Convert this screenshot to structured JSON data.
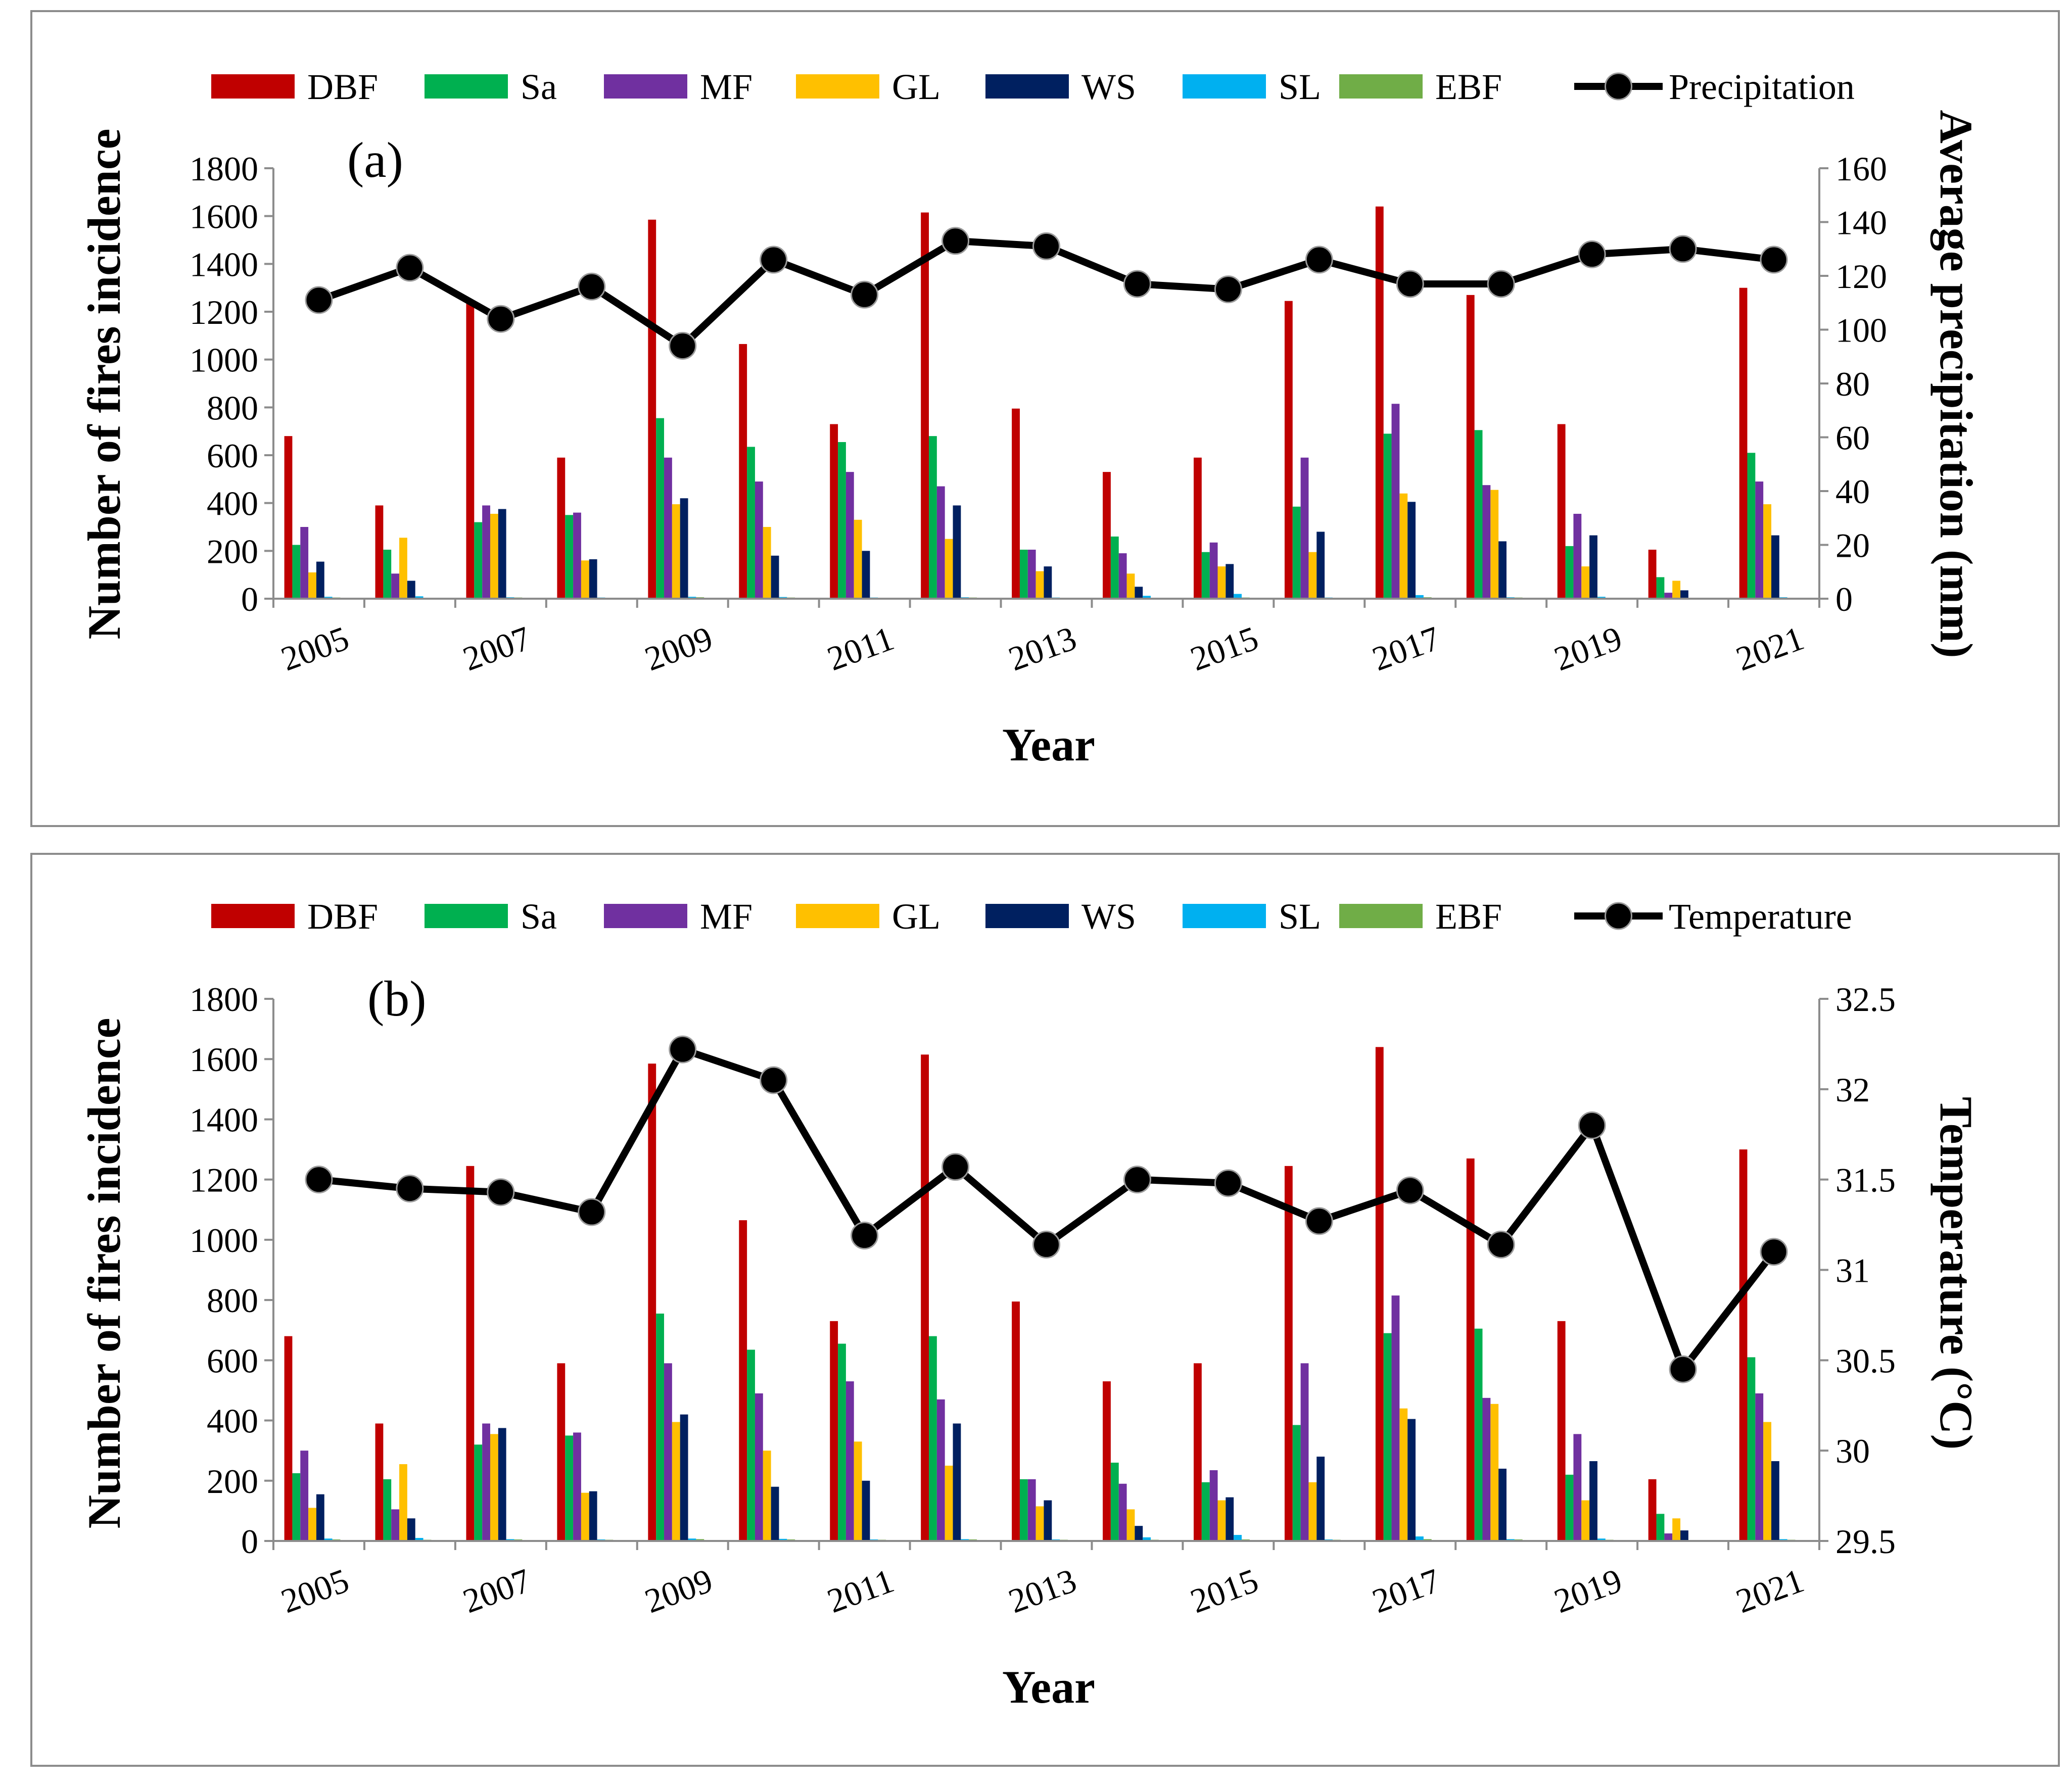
{
  "chart_data": [
    {
      "type": "bar",
      "panel_label": "(a)",
      "categories": [
        "2005",
        "2006",
        "2007",
        "2008",
        "2009",
        "2010",
        "2011",
        "2012",
        "2013",
        "2014",
        "2015",
        "2016",
        "2017",
        "2018",
        "2019",
        "2020",
        "2021"
      ],
      "x_tick_labels": [
        "2005",
        "2007",
        "2009",
        "2011",
        "2013",
        "2015",
        "2017",
        "2019",
        "2021"
      ],
      "series": [
        {
          "name": "DBF",
          "color": "#c00000",
          "values": [
            680,
            390,
            1245,
            590,
            1585,
            1065,
            730,
            1615,
            795,
            530,
            590,
            1245,
            1640,
            1270,
            730,
            205,
            1300
          ]
        },
        {
          "name": "Sa",
          "color": "#00b050",
          "values": [
            225,
            205,
            320,
            350,
            755,
            635,
            655,
            680,
            205,
            260,
            195,
            385,
            690,
            705,
            220,
            90,
            610
          ]
        },
        {
          "name": "MF",
          "color": "#7030a0",
          "values": [
            300,
            105,
            390,
            360,
            590,
            490,
            530,
            470,
            205,
            190,
            235,
            590,
            815,
            475,
            355,
            25,
            490
          ]
        },
        {
          "name": "GL",
          "color": "#ffc000",
          "values": [
            110,
            255,
            355,
            160,
            395,
            300,
            330,
            250,
            115,
            105,
            135,
            195,
            440,
            455,
            135,
            75,
            395
          ]
        },
        {
          "name": "WS",
          "color": "#002060",
          "values": [
            155,
            75,
            375,
            165,
            420,
            180,
            200,
            390,
            135,
            50,
            145,
            280,
            405,
            240,
            265,
            35,
            265
          ]
        },
        {
          "name": "SL",
          "color": "#00b0f0",
          "values": [
            8,
            10,
            6,
            5,
            8,
            7,
            5,
            6,
            5,
            12,
            20,
            5,
            15,
            6,
            8,
            3,
            6
          ]
        },
        {
          "name": "EBF",
          "color": "#70ad47",
          "values": [
            5,
            4,
            5,
            4,
            6,
            5,
            4,
            5,
            4,
            4,
            5,
            4,
            6,
            5,
            4,
            2,
            4
          ]
        }
      ],
      "line_series": {
        "name": "Precipitation",
        "values": [
          111,
          123,
          104,
          116,
          94,
          126,
          113,
          133,
          131,
          117,
          115,
          126,
          117,
          117,
          128,
          130,
          126
        ]
      },
      "ylabel": "Number of fires incidence",
      "y2label": "Average precipitation (mm)",
      "xlabel": "Year",
      "ylim": [
        0,
        1800
      ],
      "y_ticks": [
        "0",
        "200",
        "400",
        "600",
        "800",
        "1000",
        "1200",
        "1400",
        "1600",
        "1800"
      ],
      "y2lim": [
        0,
        160
      ],
      "y2_ticks": [
        "0",
        "20",
        "40",
        "60",
        "80",
        "100",
        "120",
        "140",
        "160"
      ]
    },
    {
      "type": "bar",
      "panel_label": "(b)",
      "categories": [
        "2005",
        "2006",
        "2007",
        "2008",
        "2009",
        "2010",
        "2011",
        "2012",
        "2013",
        "2014",
        "2015",
        "2016",
        "2017",
        "2018",
        "2019",
        "2020",
        "2021"
      ],
      "x_tick_labels": [
        "2005",
        "2007",
        "2009",
        "2011",
        "2013",
        "2015",
        "2017",
        "2019",
        "2021"
      ],
      "series": [
        {
          "name": "DBF",
          "color": "#c00000",
          "values": [
            680,
            390,
            1245,
            590,
            1585,
            1065,
            730,
            1615,
            795,
            530,
            590,
            1245,
            1640,
            1270,
            730,
            205,
            1300
          ]
        },
        {
          "name": "Sa",
          "color": "#00b050",
          "values": [
            225,
            205,
            320,
            350,
            755,
            635,
            655,
            680,
            205,
            260,
            195,
            385,
            690,
            705,
            220,
            90,
            610
          ]
        },
        {
          "name": "MF",
          "color": "#7030a0",
          "values": [
            300,
            105,
            390,
            360,
            590,
            490,
            530,
            470,
            205,
            190,
            235,
            590,
            815,
            475,
            355,
            25,
            490
          ]
        },
        {
          "name": "GL",
          "color": "#ffc000",
          "values": [
            110,
            255,
            355,
            160,
            395,
            300,
            330,
            250,
            115,
            105,
            135,
            195,
            440,
            455,
            135,
            75,
            395
          ]
        },
        {
          "name": "WS",
          "color": "#002060",
          "values": [
            155,
            75,
            375,
            165,
            420,
            180,
            200,
            390,
            135,
            50,
            145,
            280,
            405,
            240,
            265,
            35,
            265
          ]
        },
        {
          "name": "SL",
          "color": "#00b0f0",
          "values": [
            8,
            10,
            6,
            5,
            8,
            7,
            5,
            6,
            5,
            12,
            20,
            5,
            15,
            6,
            8,
            3,
            6
          ]
        },
        {
          "name": "EBF",
          "color": "#70ad47",
          "values": [
            5,
            4,
            5,
            4,
            6,
            5,
            4,
            5,
            4,
            4,
            5,
            4,
            6,
            5,
            4,
            2,
            4
          ]
        }
      ],
      "line_series": {
        "name": "Temperature",
        "values": [
          31.5,
          31.45,
          31.43,
          31.32,
          32.22,
          32.05,
          31.19,
          31.57,
          31.14,
          31.5,
          31.48,
          31.27,
          31.44,
          31.14,
          31.8,
          30.45,
          31.1
        ]
      },
      "ylabel": "Number of fires incidence",
      "y2label": "Temperature (°C)",
      "xlabel": "Year",
      "ylim": [
        0,
        1800
      ],
      "y_ticks": [
        "0",
        "200",
        "400",
        "600",
        "800",
        "1000",
        "1200",
        "1400",
        "1600",
        "1800"
      ],
      "y2lim": [
        29.5,
        32.5
      ],
      "y2_ticks": [
        "29.5",
        "30",
        "30.5",
        "31",
        "31.5",
        "32",
        "32.5"
      ]
    }
  ]
}
